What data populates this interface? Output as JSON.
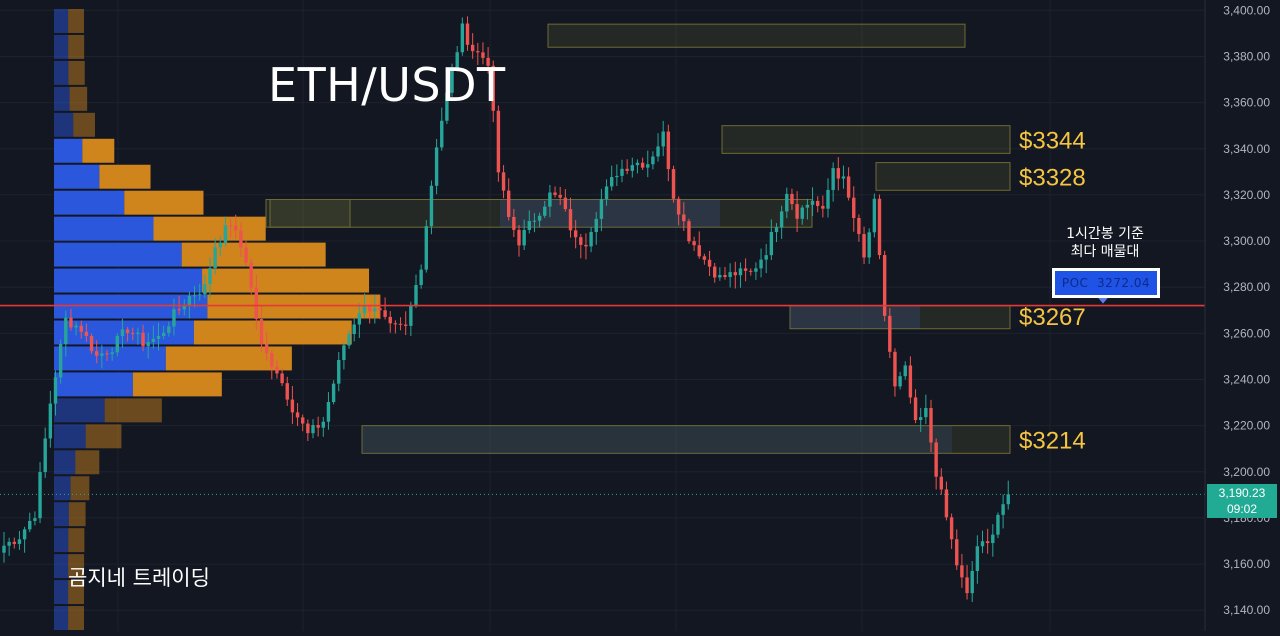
{
  "title": "ETH/USDT",
  "watermark": "곰지네 트레이딩",
  "annotation": {
    "line1": "1시간봉 기준",
    "line2": "최다 매물대"
  },
  "poc": {
    "label": "POC",
    "value": "3272.04"
  },
  "current_price": {
    "value": "3,190.23",
    "countdown": "09:02"
  },
  "colors": {
    "bull": "#26a69a",
    "bear": "#ef5350",
    "accent": "#f5c542",
    "poc_line": "#e53935",
    "profile_blue": "#2c5be8",
    "profile_orange": "#d98a1c"
  },
  "chart_data": {
    "type": "candlestick",
    "y_axis": {
      "min": 3131,
      "max": 3401,
      "ticks": [
        3140,
        3160,
        3180,
        3200,
        3220,
        3240,
        3260,
        3280,
        3300,
        3320,
        3340,
        3360,
        3380,
        3400
      ]
    },
    "levels": [
      {
        "label": "$3344",
        "low": 3338,
        "high": 3350
      },
      {
        "label": "$3328",
        "low": 3322,
        "high": 3334
      },
      {
        "label": "$3267",
        "low": 3262,
        "high": 3273
      },
      {
        "label": "$3214",
        "low": 3208,
        "high": 3220
      }
    ],
    "poc_price": 3272.04,
    "close_anchors": [
      [
        0,
        3168
      ],
      [
        3,
        3172
      ],
      [
        6,
        3182
      ],
      [
        9,
        3230
      ],
      [
        12,
        3266
      ],
      [
        15,
        3262
      ],
      [
        18,
        3250
      ],
      [
        21,
        3254
      ],
      [
        24,
        3262
      ],
      [
        27,
        3256
      ],
      [
        30,
        3258
      ],
      [
        33,
        3268
      ],
      [
        36,
        3276
      ],
      [
        39,
        3280
      ],
      [
        41,
        3298
      ],
      [
        44,
        3308
      ],
      [
        47,
        3292
      ],
      [
        50,
        3254
      ],
      [
        53,
        3244
      ],
      [
        56,
        3228
      ],
      [
        59,
        3216
      ],
      [
        62,
        3222
      ],
      [
        66,
        3255
      ],
      [
        69,
        3270
      ],
      [
        72,
        3272
      ],
      [
        75,
        3262
      ],
      [
        78,
        3262
      ],
      [
        81,
        3290
      ],
      [
        84,
        3342
      ],
      [
        87,
        3374
      ],
      [
        89,
        3392
      ],
      [
        91,
        3383
      ],
      [
        94,
        3378
      ],
      [
        96,
        3330
      ],
      [
        98,
        3310
      ],
      [
        100,
        3300
      ],
      [
        103,
        3310
      ],
      [
        106,
        3320
      ],
      [
        108,
        3318
      ],
      [
        111,
        3300
      ],
      [
        113,
        3300
      ],
      [
        116,
        3318
      ],
      [
        119,
        3330
      ],
      [
        122,
        3334
      ],
      [
        125,
        3334
      ],
      [
        128,
        3346
      ],
      [
        130,
        3320
      ],
      [
        133,
        3302
      ],
      [
        136,
        3292
      ],
      [
        139,
        3284
      ],
      [
        142,
        3286
      ],
      [
        145,
        3286
      ],
      [
        148,
        3296
      ],
      [
        150,
        3308
      ],
      [
        152,
        3322
      ],
      [
        154,
        3312
      ],
      [
        157,
        3318
      ],
      [
        159,
        3312
      ],
      [
        161,
        3332
      ],
      [
        163,
        3326
      ],
      [
        165,
        3310
      ],
      [
        167,
        3292
      ],
      [
        169,
        3316
      ],
      [
        171,
        3268
      ],
      [
        173,
        3236
      ],
      [
        175,
        3244
      ],
      [
        177,
        3220
      ],
      [
        179,
        3226
      ],
      [
        181,
        3200
      ],
      [
        183,
        3180
      ],
      [
        185,
        3160
      ],
      [
        187,
        3146
      ],
      [
        189,
        3168
      ],
      [
        191,
        3168
      ],
      [
        193,
        3182
      ],
      [
        195,
        3190.23
      ]
    ]
  }
}
